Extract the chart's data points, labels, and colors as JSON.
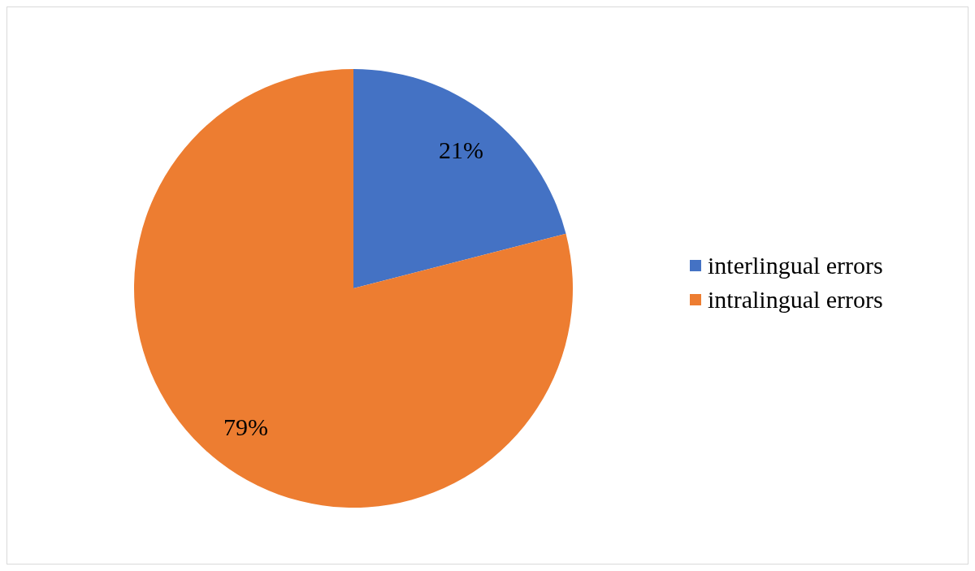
{
  "chart_data": {
    "type": "pie",
    "categories": [
      "interlingual errors",
      "intralingual errors"
    ],
    "values": [
      21,
      79
    ],
    "value_labels": [
      "21%",
      "79%"
    ],
    "colors": [
      "#4472c4",
      "#ed7d31"
    ],
    "legend": "right"
  }
}
